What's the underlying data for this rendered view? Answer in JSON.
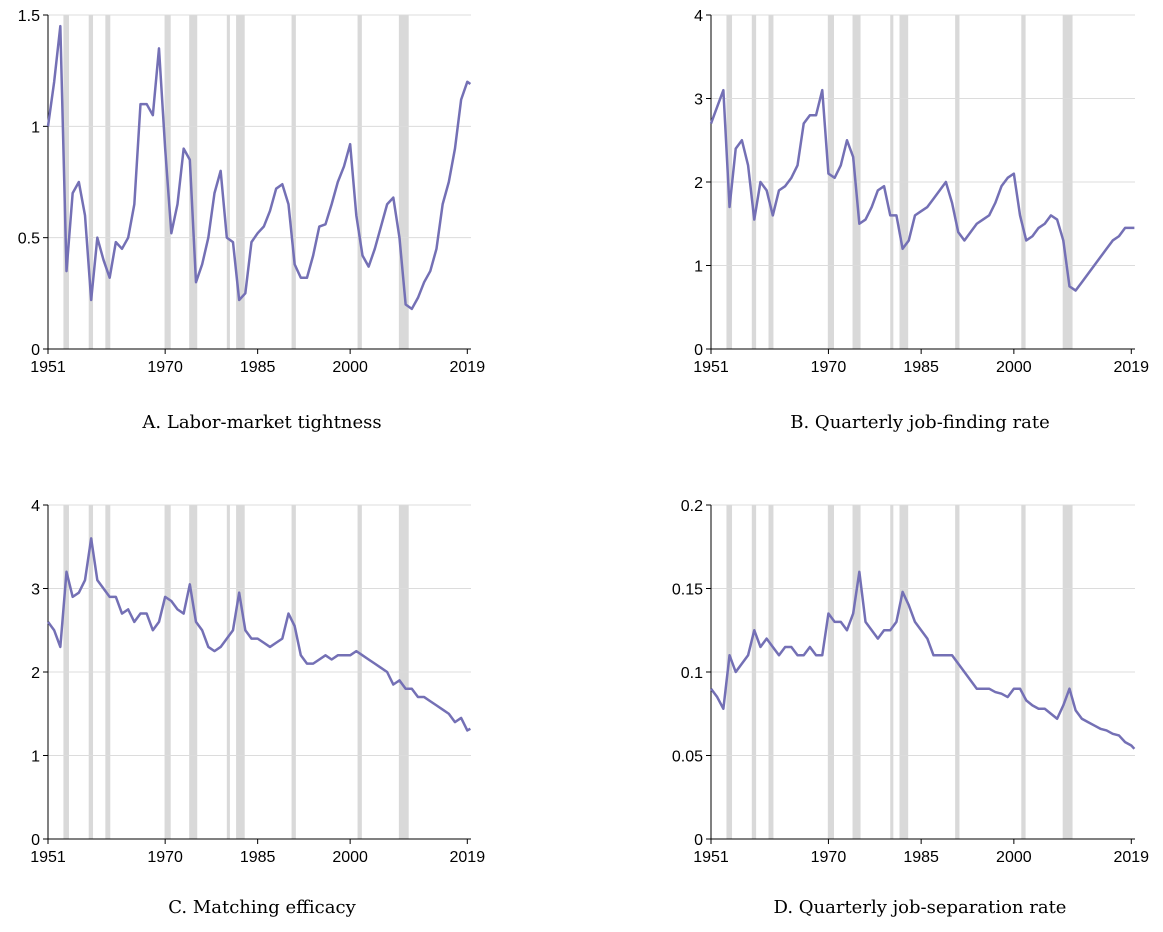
{
  "chart_data": [
    {
      "type": "line",
      "title": "A. Labor-market tightness",
      "color": "#7470b5",
      "recession_color": "#d9d9d9",
      "grid": true,
      "xlim": [
        1951,
        2019.6
      ],
      "xticks": [
        1951,
        1970,
        1985,
        2000,
        2019
      ],
      "ylim": [
        0,
        1.5
      ],
      "yticks": [
        0,
        0.5,
        1,
        1.5
      ],
      "recessions": [
        [
          1953.5,
          1954.4
        ],
        [
          1957.6,
          1958.3
        ],
        [
          1960.3,
          1961.1
        ],
        [
          1969.9,
          1970.9
        ],
        [
          1973.9,
          1975.2
        ],
        [
          1980.0,
          1980.5
        ],
        [
          1981.5,
          1982.9
        ],
        [
          1990.5,
          1991.2
        ],
        [
          2001.2,
          2001.9
        ],
        [
          2007.9,
          2009.5
        ]
      ],
      "x": [
        1951,
        1952,
        1953,
        1954,
        1955,
        1956,
        1957,
        1958,
        1959,
        1960,
        1961,
        1962,
        1963,
        1964,
        1965,
        1966,
        1967,
        1968,
        1969,
        1970,
        1971,
        1972,
        1973,
        1974,
        1975,
        1976,
        1977,
        1978,
        1979,
        1980,
        1981,
        1982,
        1983,
        1984,
        1985,
        1986,
        1987,
        1988,
        1989,
        1990,
        1991,
        1992,
        1993,
        1994,
        1995,
        1996,
        1997,
        1998,
        1999,
        2000,
        2001,
        2002,
        2003,
        2004,
        2005,
        2006,
        2007,
        2008,
        2009,
        2010,
        2011,
        2012,
        2013,
        2014,
        2015,
        2016,
        2017,
        2018,
        2019,
        2019.5
      ],
      "values": [
        1.0,
        1.2,
        1.45,
        0.35,
        0.7,
        0.75,
        0.6,
        0.22,
        0.5,
        0.4,
        0.32,
        0.48,
        0.45,
        0.5,
        0.65,
        1.1,
        1.1,
        1.05,
        1.35,
        0.9,
        0.52,
        0.65,
        0.9,
        0.85,
        0.3,
        0.38,
        0.5,
        0.7,
        0.8,
        0.5,
        0.48,
        0.22,
        0.25,
        0.48,
        0.52,
        0.55,
        0.62,
        0.72,
        0.74,
        0.65,
        0.38,
        0.32,
        0.32,
        0.42,
        0.55,
        0.56,
        0.65,
        0.75,
        0.82,
        0.92,
        0.6,
        0.42,
        0.37,
        0.45,
        0.55,
        0.65,
        0.68,
        0.5,
        0.2,
        0.18,
        0.23,
        0.3,
        0.35,
        0.45,
        0.65,
        0.75,
        0.9,
        1.12,
        1.2,
        1.19
      ]
    },
    {
      "type": "line",
      "title": "B. Quarterly job-finding rate",
      "color": "#7470b5",
      "recession_color": "#d9d9d9",
      "grid": true,
      "xlim": [
        1951,
        2019.6
      ],
      "xticks": [
        1951,
        1970,
        1985,
        2000,
        2019
      ],
      "ylim": [
        0,
        4
      ],
      "yticks": [
        0,
        1,
        2,
        3,
        4
      ],
      "recessions": [
        [
          1953.5,
          1954.4
        ],
        [
          1957.6,
          1958.3
        ],
        [
          1960.3,
          1961.1
        ],
        [
          1969.9,
          1970.9
        ],
        [
          1973.9,
          1975.2
        ],
        [
          1980.0,
          1980.5
        ],
        [
          1981.5,
          1982.9
        ],
        [
          1990.5,
          1991.2
        ],
        [
          2001.2,
          2001.9
        ],
        [
          2007.9,
          2009.5
        ]
      ],
      "x": [
        1951,
        1952,
        1953,
        1954,
        1955,
        1956,
        1957,
        1958,
        1959,
        1960,
        1961,
        1962,
        1963,
        1964,
        1965,
        1966,
        1967,
        1968,
        1969,
        1970,
        1971,
        1972,
        1973,
        1974,
        1975,
        1976,
        1977,
        1978,
        1979,
        1980,
        1981,
        1982,
        1983,
        1984,
        1985,
        1986,
        1987,
        1988,
        1989,
        1990,
        1991,
        1992,
        1993,
        1994,
        1995,
        1996,
        1997,
        1998,
        1999,
        2000,
        2001,
        2002,
        2003,
        2004,
        2005,
        2006,
        2007,
        2008,
        2009,
        2010,
        2011,
        2012,
        2013,
        2014,
        2015,
        2016,
        2017,
        2018,
        2019,
        2019.5
      ],
      "values": [
        2.7,
        2.9,
        3.1,
        1.7,
        2.4,
        2.5,
        2.2,
        1.55,
        2.0,
        1.9,
        1.6,
        1.9,
        1.95,
        2.05,
        2.2,
        2.7,
        2.8,
        2.8,
        3.1,
        2.1,
        2.05,
        2.2,
        2.5,
        2.3,
        1.5,
        1.55,
        1.7,
        1.9,
        1.95,
        1.6,
        1.6,
        1.2,
        1.3,
        1.6,
        1.65,
        1.7,
        1.8,
        1.9,
        2.0,
        1.75,
        1.4,
        1.3,
        1.4,
        1.5,
        1.55,
        1.6,
        1.75,
        1.95,
        2.05,
        2.1,
        1.6,
        1.3,
        1.35,
        1.45,
        1.5,
        1.6,
        1.55,
        1.3,
        0.75,
        0.7,
        0.8,
        0.9,
        1.0,
        1.1,
        1.2,
        1.3,
        1.35,
        1.45,
        1.45,
        1.45
      ]
    },
    {
      "type": "line",
      "title": "C. Matching efficacy",
      "color": "#7470b5",
      "recession_color": "#d9d9d9",
      "grid": true,
      "xlim": [
        1951,
        2019.6
      ],
      "xticks": [
        1951,
        1970,
        1985,
        2000,
        2019
      ],
      "ylim": [
        0,
        4
      ],
      "yticks": [
        0,
        1,
        2,
        3,
        4
      ],
      "recessions": [
        [
          1953.5,
          1954.4
        ],
        [
          1957.6,
          1958.3
        ],
        [
          1960.3,
          1961.1
        ],
        [
          1969.9,
          1970.9
        ],
        [
          1973.9,
          1975.2
        ],
        [
          1980.0,
          1980.5
        ],
        [
          1981.5,
          1982.9
        ],
        [
          1990.5,
          1991.2
        ],
        [
          2001.2,
          2001.9
        ],
        [
          2007.9,
          2009.5
        ]
      ],
      "x": [
        1951,
        1952,
        1953,
        1954,
        1955,
        1956,
        1957,
        1958,
        1959,
        1960,
        1961,
        1962,
        1963,
        1964,
        1965,
        1966,
        1967,
        1968,
        1969,
        1970,
        1971,
        1972,
        1973,
        1974,
        1975,
        1976,
        1977,
        1978,
        1979,
        1980,
        1981,
        1982,
        1983,
        1984,
        1985,
        1986,
        1987,
        1988,
        1989,
        1990,
        1991,
        1992,
        1993,
        1994,
        1995,
        1996,
        1997,
        1998,
        1999,
        2000,
        2001,
        2002,
        2003,
        2004,
        2005,
        2006,
        2007,
        2008,
        2009,
        2010,
        2011,
        2012,
        2013,
        2014,
        2015,
        2016,
        2017,
        2018,
        2019,
        2019.5
      ],
      "values": [
        2.6,
        2.5,
        2.3,
        3.2,
        2.9,
        2.95,
        3.1,
        3.6,
        3.1,
        3.0,
        2.9,
        2.9,
        2.7,
        2.75,
        2.6,
        2.7,
        2.7,
        2.5,
        2.6,
        2.9,
        2.85,
        2.75,
        2.7,
        3.05,
        2.6,
        2.5,
        2.3,
        2.25,
        2.3,
        2.4,
        2.5,
        2.95,
        2.5,
        2.4,
        2.4,
        2.35,
        2.3,
        2.35,
        2.4,
        2.7,
        2.55,
        2.2,
        2.1,
        2.1,
        2.15,
        2.2,
        2.15,
        2.2,
        2.2,
        2.2,
        2.25,
        2.2,
        2.15,
        2.1,
        2.05,
        2.0,
        1.85,
        1.9,
        1.8,
        1.8,
        1.7,
        1.7,
        1.65,
        1.6,
        1.55,
        1.5,
        1.4,
        1.45,
        1.3,
        1.32
      ]
    },
    {
      "type": "line",
      "title": "D. Quarterly job-separation rate",
      "color": "#7470b5",
      "recession_color": "#d9d9d9",
      "grid": true,
      "xlim": [
        1951,
        2019.6
      ],
      "xticks": [
        1951,
        1970,
        1985,
        2000,
        2019
      ],
      "ylim": [
        0,
        0.2
      ],
      "yticks": [
        0,
        0.05,
        0.1,
        0.15,
        0.2
      ],
      "recessions": [
        [
          1953.5,
          1954.4
        ],
        [
          1957.6,
          1958.3
        ],
        [
          1960.3,
          1961.1
        ],
        [
          1969.9,
          1970.9
        ],
        [
          1973.9,
          1975.2
        ],
        [
          1980.0,
          1980.5
        ],
        [
          1981.5,
          1982.9
        ],
        [
          1990.5,
          1991.2
        ],
        [
          2001.2,
          2001.9
        ],
        [
          2007.9,
          2009.5
        ]
      ],
      "x": [
        1951,
        1952,
        1953,
        1954,
        1955,
        1956,
        1957,
        1958,
        1959,
        1960,
        1961,
        1962,
        1963,
        1964,
        1965,
        1966,
        1967,
        1968,
        1969,
        1970,
        1971,
        1972,
        1973,
        1974,
        1975,
        1976,
        1977,
        1978,
        1979,
        1980,
        1981,
        1982,
        1983,
        1984,
        1985,
        1986,
        1987,
        1988,
        1989,
        1990,
        1991,
        1992,
        1993,
        1994,
        1995,
        1996,
        1997,
        1998,
        1999,
        2000,
        2001,
        2002,
        2003,
        2004,
        2005,
        2006,
        2007,
        2008,
        2009,
        2010,
        2011,
        2012,
        2013,
        2014,
        2015,
        2016,
        2017,
        2018,
        2019,
        2019.5
      ],
      "values": [
        0.09,
        0.085,
        0.078,
        0.11,
        0.1,
        0.105,
        0.11,
        0.125,
        0.115,
        0.12,
        0.115,
        0.11,
        0.115,
        0.115,
        0.11,
        0.11,
        0.115,
        0.11,
        0.11,
        0.135,
        0.13,
        0.13,
        0.125,
        0.135,
        0.16,
        0.13,
        0.125,
        0.12,
        0.125,
        0.125,
        0.13,
        0.148,
        0.14,
        0.13,
        0.125,
        0.12,
        0.11,
        0.11,
        0.11,
        0.11,
        0.105,
        0.1,
        0.095,
        0.09,
        0.09,
        0.09,
        0.088,
        0.087,
        0.085,
        0.09,
        0.09,
        0.083,
        0.08,
        0.078,
        0.078,
        0.075,
        0.072,
        0.08,
        0.09,
        0.077,
        0.072,
        0.07,
        0.068,
        0.066,
        0.065,
        0.063,
        0.062,
        0.058,
        0.056,
        0.054
      ]
    }
  ]
}
